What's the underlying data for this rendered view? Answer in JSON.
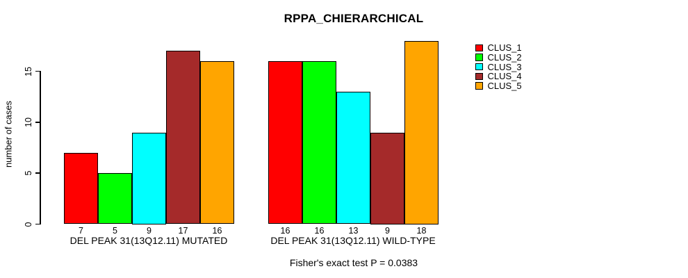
{
  "title": "RPPA_CHIERARCHICAL",
  "footer": "Fisher's exact test P = 0.0383",
  "chart_data": {
    "type": "bar",
    "title": "RPPA_CHIERARCHICAL",
    "xlabel": "Fisher's exact test P = 0.0383",
    "ylabel": "number of cases",
    "categories": [
      "DEL PEAK 31(13Q12.11) MUTATED",
      "DEL PEAK 31(13Q12.11) WILD-TYPE"
    ],
    "series": [
      {
        "name": "CLUS_1",
        "color": "#FF0000",
        "values": [
          7,
          16
        ]
      },
      {
        "name": "CLUS_2",
        "color": "#00FF00",
        "values": [
          5,
          16
        ]
      },
      {
        "name": "CLUS_3",
        "color": "#00FFFF",
        "values": [
          9,
          13
        ]
      },
      {
        "name": "CLUS_4",
        "color": "#A52A2A",
        "values": [
          17,
          9
        ]
      },
      {
        "name": "CLUS_5",
        "color": "#FFA500",
        "values": [
          16,
          18
        ]
      }
    ],
    "yticks": [
      0,
      5,
      10,
      15
    ],
    "ylim": [
      0,
      18
    ],
    "bar_value_labels": [
      [
        "7",
        "5",
        "9",
        "17",
        "16"
      ],
      [
        "16",
        "16",
        "13",
        "9",
        "18"
      ]
    ],
    "bar_labels_shown": true,
    "legend_position": "top-right",
    "grid": false,
    "background": "#ffffff",
    "bar_border_color": "#000000"
  }
}
